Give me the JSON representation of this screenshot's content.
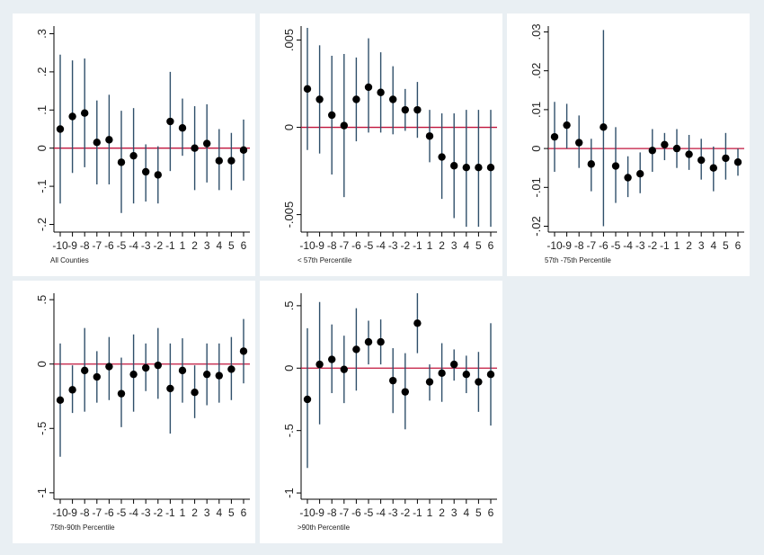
{
  "figure": {
    "background": "#e9eff3",
    "panel_background": "#ffffff",
    "point_color": "#000000",
    "ci_color": "#2f4f6a",
    "zero_line_color": "#c0143c"
  },
  "chart_data": [
    {
      "type": "scatter",
      "title": "",
      "caption": "All Counties",
      "xlabel": "",
      "ylabel": "",
      "x": [
        "-10",
        "-9",
        "-8",
        "-7",
        "-6",
        "-5",
        "-4",
        "-3",
        "-2",
        "-1",
        "1",
        "2",
        "3",
        "4",
        "5",
        "6"
      ],
      "xlim": [
        -10,
        6
      ],
      "ylim": [
        -0.22,
        0.32
      ],
      "yticks": [
        -0.2,
        -0.1,
        0,
        0.1,
        0.2,
        0.3
      ],
      "ytick_labels": [
        "-.2",
        "-.1",
        "0",
        ".1",
        ".2",
        ".3"
      ],
      "series": [
        {
          "estimate": [
            0.05,
            0.083,
            0.092,
            0.015,
            0.022,
            -0.037,
            -0.02,
            -0.062,
            -0.07,
            0.07,
            0.053,
            0,
            0.012,
            -0.033,
            -0.033,
            -0.005
          ],
          "ci_low": [
            -0.145,
            -0.065,
            -0.05,
            -0.095,
            -0.095,
            -0.17,
            -0.145,
            -0.14,
            -0.145,
            -0.06,
            -0.02,
            -0.11,
            -0.09,
            -0.11,
            -0.11,
            -0.085
          ],
          "ci_high": [
            0.245,
            0.23,
            0.235,
            0.125,
            0.14,
            0.098,
            0.105,
            0.01,
            0.005,
            0.2,
            0.13,
            0.11,
            0.115,
            0.05,
            0.04,
            0.075
          ]
        }
      ],
      "grid": false
    },
    {
      "type": "scatter",
      "title": "",
      "caption": "< 57th Percentile",
      "xlabel": "",
      "ylabel": "",
      "x": [
        "-10",
        "-9",
        "-8",
        "-7",
        "-6",
        "-5",
        "-4",
        "-3",
        "-2",
        "-1",
        "1",
        "2",
        "3",
        "4",
        "5",
        "6"
      ],
      "xlim": [
        -10,
        6
      ],
      "ylim": [
        -0.006,
        0.0058
      ],
      "yticks": [
        -0.005,
        0,
        0.005
      ],
      "ytick_labels": [
        "-.005",
        "0",
        ".005"
      ],
      "series": [
        {
          "estimate": [
            0.0022,
            0.0016,
            0.0007,
            0.0001,
            0.0016,
            0.0023,
            0.002,
            0.0016,
            0.001,
            0.001,
            -0.0005,
            -0.0017,
            -0.0022,
            -0.0023,
            -0.0023,
            -0.0023
          ],
          "ci_low": [
            -0.0013,
            -0.0015,
            -0.0027,
            -0.004,
            -0.0008,
            -0.0003,
            -0.0003,
            -0.0004,
            -0.0002,
            -0.0006,
            -0.002,
            -0.0041,
            -0.0052,
            -0.0057,
            -0.0057,
            -0.0057
          ],
          "ci_high": [
            0.0057,
            0.0047,
            0.0041,
            0.0042,
            0.004,
            0.0051,
            0.0043,
            0.0035,
            0.0022,
            0.0026,
            0.001,
            0.0008,
            0.0008,
            0.001,
            0.001,
            0.001
          ]
        }
      ],
      "grid": false
    },
    {
      "type": "scatter",
      "title": "",
      "caption": "57th -75th Percentile",
      "xlabel": "",
      "ylabel": "",
      "x": [
        "-10",
        "-9",
        "-8",
        "-7",
        "-6",
        "-5",
        "-4",
        "-3",
        "-2",
        "-1",
        "1",
        "2",
        "3",
        "4",
        "5",
        "6"
      ],
      "xlim": [
        -10,
        6
      ],
      "ylim": [
        -0.0215,
        0.0315
      ],
      "yticks": [
        -0.02,
        -0.01,
        0,
        0.01,
        0.02,
        0.03
      ],
      "ytick_labels": [
        "-.02",
        "-.01",
        "0",
        ".01",
        ".02",
        ".03"
      ],
      "series": [
        {
          "estimate": [
            0.003,
            0.006,
            0.0015,
            -0.004,
            0.0055,
            -0.0045,
            -0.0075,
            -0.0065,
            -0.0005,
            0.001,
            0,
            -0.0015,
            -0.003,
            -0.005,
            -0.0025,
            -0.0035
          ],
          "ci_low": [
            -0.006,
            0,
            -0.005,
            -0.011,
            -0.02,
            -0.014,
            -0.0125,
            -0.0115,
            -0.006,
            -0.003,
            -0.005,
            -0.0055,
            -0.008,
            -0.011,
            -0.008,
            -0.007
          ],
          "ci_high": [
            0.012,
            0.0115,
            0.0085,
            0.0025,
            0.0305,
            0.0055,
            -0.002,
            -0.001,
            0.005,
            0.004,
            0.005,
            0.0035,
            0.0025,
            0.0005,
            0.004,
            0
          ]
        }
      ],
      "grid": false
    },
    {
      "type": "scatter",
      "title": "",
      "caption": "75th-90th Percentile",
      "xlabel": "",
      "ylabel": "",
      "x": [
        "-10",
        "-9",
        "-8",
        "-7",
        "-6",
        "-5",
        "-4",
        "-3",
        "-2",
        "-1",
        "1",
        "2",
        "3",
        "4",
        "5",
        "6"
      ],
      "xlim": [
        -10,
        6
      ],
      "ylim": [
        -1.05,
        0.55
      ],
      "yticks": [
        -1,
        -0.5,
        0,
        0.5
      ],
      "ytick_labels": [
        "-1",
        "-.5",
        "0",
        ".5"
      ],
      "series": [
        {
          "estimate": [
            -0.28,
            -0.2,
            -0.05,
            -0.1,
            -0.02,
            -0.23,
            -0.08,
            -0.03,
            -0.01,
            -0.19,
            -0.05,
            -0.22,
            -0.08,
            -0.09,
            -0.04,
            0.1
          ],
          "ci_low": [
            -0.72,
            -0.38,
            -0.37,
            -0.3,
            -0.28,
            -0.49,
            -0.37,
            -0.21,
            -0.27,
            -0.54,
            -0.3,
            -0.42,
            -0.32,
            -0.3,
            -0.28,
            -0.15
          ],
          "ci_high": [
            0.16,
            -0.01,
            0.28,
            0.1,
            0.21,
            0.05,
            0.23,
            0.16,
            0.28,
            0.16,
            0.2,
            -0.01,
            0.16,
            0.16,
            0.21,
            0.35
          ]
        }
      ],
      "grid": false
    },
    {
      "type": "scatter",
      "title": "",
      "caption": ">90th Percentile",
      "xlabel": "",
      "ylabel": "",
      "x": [
        "-10",
        "-9",
        "-8",
        "-7",
        "-6",
        "-5",
        "-4",
        "-3",
        "-2",
        "-1",
        "1",
        "2",
        "3",
        "4",
        "5",
        "6"
      ],
      "xlim": [
        -10,
        6
      ],
      "ylim": [
        -1.05,
        0.6
      ],
      "yticks": [
        -1,
        -0.5,
        0,
        0.5
      ],
      "ytick_labels": [
        "-1",
        "-.5",
        "0",
        ".5"
      ],
      "series": [
        {
          "estimate": [
            -0.25,
            0.03,
            0.07,
            -0.01,
            0.15,
            0.21,
            0.21,
            -0.1,
            -0.19,
            0.36,
            -0.11,
            -0.04,
            0.03,
            -0.05,
            -0.11,
            -0.05
          ],
          "ci_low": [
            -0.8,
            -0.45,
            -0.2,
            -0.28,
            -0.18,
            0.03,
            0.03,
            -0.36,
            -0.49,
            0.12,
            -0.26,
            -0.27,
            -0.1,
            -0.2,
            -0.35,
            -0.46
          ],
          "ci_high": [
            0.32,
            0.53,
            0.35,
            0.26,
            0.48,
            0.38,
            0.39,
            0.16,
            0.12,
            0.6,
            0.03,
            0.2,
            0.15,
            0.1,
            0.13,
            0.36
          ]
        }
      ],
      "grid": false
    }
  ]
}
